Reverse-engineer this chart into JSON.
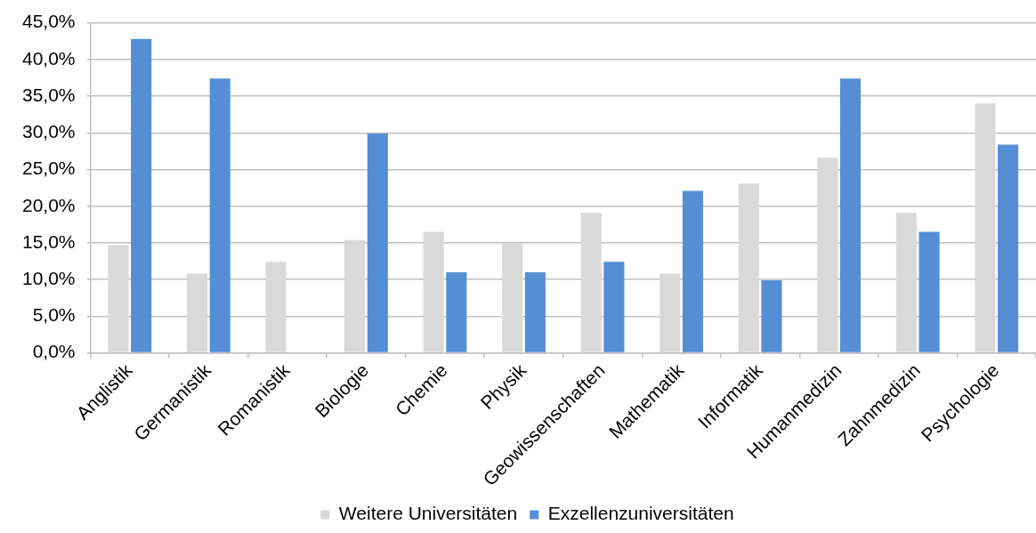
{
  "chart_data": {
    "type": "bar",
    "categories": [
      "Anglistik",
      "Germanistik",
      "Romanistik",
      "Biologie",
      "Chemie",
      "Physik",
      "Geowissenschaften",
      "Mathematik",
      "Informatik",
      "Humanmedizin",
      "Zahnmedizin",
      "Psychologie"
    ],
    "series": [
      {
        "name": "Weitere Universitäten",
        "color": "#d9d9d9",
        "values": [
          14.7,
          10.8,
          12.4,
          15.4,
          16.5,
          15.0,
          19.1,
          10.8,
          23.1,
          26.6,
          19.1,
          34.0
        ]
      },
      {
        "name": "Exzellenzuniversitäten",
        "color": "#558ed5",
        "values": [
          42.8,
          37.4,
          null,
          29.9,
          11.0,
          11.0,
          12.4,
          22.1,
          9.9,
          37.4,
          16.5,
          28.4
        ]
      }
    ],
    "ylim": [
      0,
      45
    ],
    "yticks": [
      {
        "value": 0,
        "label": "0,0%"
      },
      {
        "value": 5,
        "label": "5,0%"
      },
      {
        "value": 10,
        "label": "10,0%"
      },
      {
        "value": 15,
        "label": "15,0%"
      },
      {
        "value": 20,
        "label": "20,0%"
      },
      {
        "value": 25,
        "label": "25,0%"
      },
      {
        "value": 30,
        "label": "30,0%"
      },
      {
        "value": 35,
        "label": "35,0%"
      },
      {
        "value": 40,
        "label": "40,0%"
      },
      {
        "value": 45,
        "label": "45,0%"
      }
    ],
    "grid": "y",
    "legend": "bottom"
  }
}
